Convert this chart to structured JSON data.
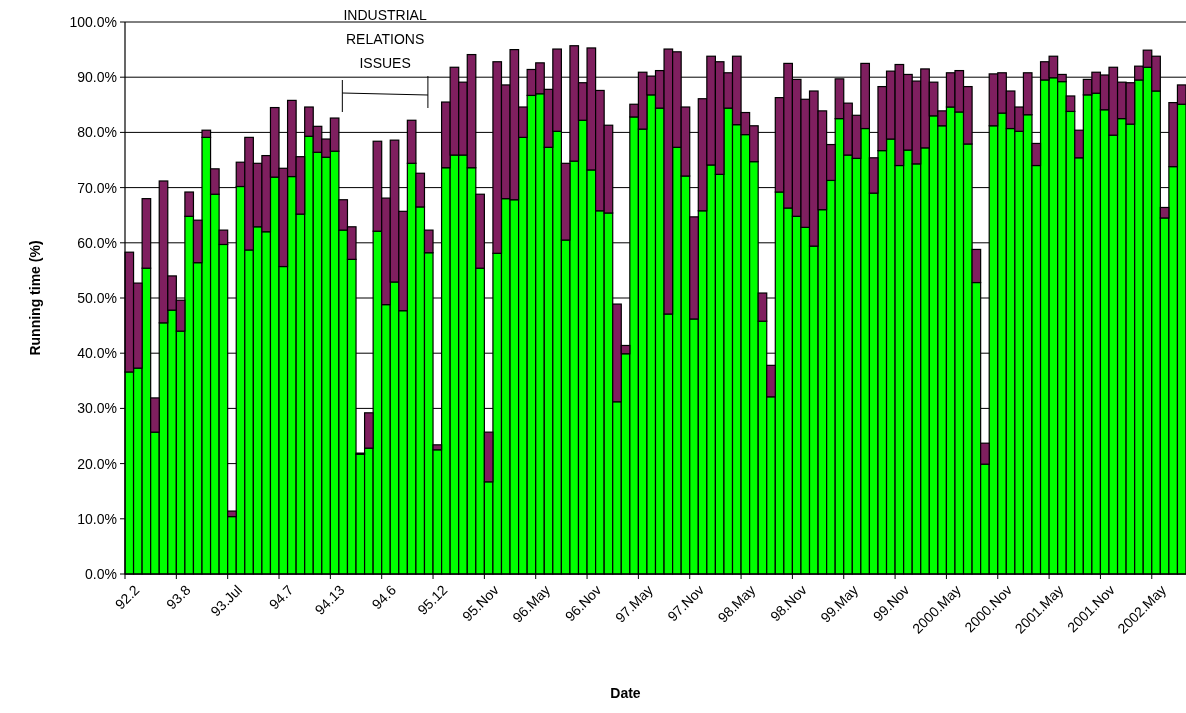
{
  "chart_data": {
    "type": "bar",
    "stacked": true,
    "xlabel": "Date",
    "ylabel": "Running time (%)",
    "annotations": [
      "INDUSTRIAL RELATIONS ISSUES"
    ],
    "categories": [
      "92.2",
      null,
      null,
      null,
      null,
      null,
      "93.8",
      null,
      null,
      null,
      null,
      null,
      "93.Jul",
      null,
      null,
      null,
      null,
      null,
      "94.7",
      null,
      null,
      null,
      null,
      null,
      "94.13",
      null,
      null,
      null,
      null,
      null,
      "94.6",
      null,
      null,
      null,
      null,
      null,
      "95.12",
      null,
      null,
      null,
      null,
      null,
      "95.Nov",
      null,
      null,
      null,
      null,
      null,
      "96.May",
      null,
      null,
      null,
      null,
      null,
      "96.Nov",
      null,
      null,
      null,
      null,
      null,
      "97.May",
      null,
      null,
      null,
      null,
      null,
      "97.Nov",
      null,
      null,
      null,
      null,
      null,
      "98.May",
      null,
      null,
      null,
      null,
      null,
      "98.Nov",
      null,
      null,
      null,
      null,
      null,
      "99.May",
      null,
      null,
      null,
      null,
      null,
      "99.Nov",
      null,
      null,
      null,
      null,
      null,
      "2000.May",
      null,
      null,
      null,
      null,
      null,
      "2000.Nov",
      null,
      null,
      null,
      null,
      null,
      "2001.May",
      null,
      null,
      null,
      null,
      null,
      "2001.Nov",
      null,
      null,
      null,
      null,
      null,
      "2002.May",
      null,
      null,
      null
    ],
    "series": [
      {
        "color": "#00ff00",
        "values": [
          36.6,
          37.3,
          55.4,
          25.7,
          45.5,
          47.8,
          44.0,
          64.8,
          56.4,
          79.1,
          68.8,
          59.7,
          10.4,
          70.2,
          58.7,
          62.9,
          62.0,
          71.9,
          55.7,
          72.0,
          65.2,
          79.3,
          76.4,
          75.5,
          76.6,
          62.3,
          57.0,
          21.7,
          22.8,
          62.1,
          48.8,
          52.9,
          47.7,
          74.4,
          66.5,
          58.2,
          22.5,
          73.6,
          75.9,
          75.9,
          73.6,
          55.4,
          16.7,
          58.1,
          68.0,
          67.8,
          79.1,
          86.7,
          87.0,
          77.3,
          80.2,
          60.5,
          74.8,
          82.2,
          73.2,
          65.8,
          65.4,
          31.2,
          39.9,
          82.8,
          80.6,
          86.8,
          84.4,
          47.1,
          77.3,
          72.1,
          46.2,
          65.8,
          74.1,
          72.4,
          84.4,
          81.4,
          79.6,
          74.7,
          45.8,
          32.1,
          69.2,
          66.3,
          64.8,
          62.8,
          59.4,
          66.0,
          71.3,
          82.5,
          75.9,
          75.3,
          80.7,
          69.0,
          76.7,
          78.8,
          74.0,
          76.8,
          74.3,
          77.2,
          83.0,
          81.2,
          84.6,
          83.7,
          77.9,
          52.8,
          19.9,
          81.2,
          83.5,
          80.7,
          80.2,
          83.2,
          74.0,
          89.5,
          89.9,
          89.2,
          83.8,
          75.4,
          86.8,
          87.1,
          84.1,
          79.5,
          82.5,
          81.5,
          89.5,
          91.8,
          87.5,
          64.5,
          73.8,
          85.1
        ]
      },
      {
        "color": "#7f1f5f",
        "values": [
          21.7,
          15.4,
          12.6,
          6.2,
          25.7,
          6.2,
          5.6,
          4.4,
          7.7,
          1.3,
          4.6,
          2.6,
          1.0,
          4.4,
          20.4,
          11.5,
          13.8,
          12.6,
          17.8,
          13.8,
          10.4,
          5.3,
          4.7,
          3.3,
          6.0,
          5.5,
          5.9,
          0.2,
          6.4,
          16.3,
          19.3,
          25.7,
          18.0,
          7.8,
          6.1,
          4.1,
          0.9,
          11.9,
          15.9,
          13.2,
          20.5,
          13.4,
          9.0,
          34.7,
          20.6,
          27.2,
          5.5,
          4.7,
          5.6,
          10.5,
          14.9,
          13.9,
          20.9,
          6.8,
          22.1,
          21.8,
          15.9,
          17.7,
          1.5,
          2.3,
          10.3,
          3.4,
          6.8,
          48.0,
          17.3,
          12.5,
          18.5,
          20.3,
          19.7,
          20.4,
          6.4,
          12.4,
          4.0,
          6.5,
          5.1,
          5.7,
          17.1,
          26.2,
          24.8,
          23.2,
          28.1,
          17.9,
          6.5,
          7.2,
          9.4,
          7.8,
          11.8,
          6.4,
          11.6,
          12.3,
          18.3,
          13.7,
          15.0,
          14.3,
          6.1,
          2.7,
          6.2,
          7.5,
          10.4,
          6.0,
          3.8,
          9.4,
          7.3,
          6.8,
          4.4,
          7.6,
          4.0,
          3.3,
          3.9,
          1.3,
          2.8,
          5.0,
          2.8,
          3.8,
          6.3,
          12.3,
          6.6,
          7.5,
          2.5,
          3.1,
          6.3,
          1.9,
          11.6,
          3.5
        ]
      }
    ],
    "ylim": [
      0,
      100
    ],
    "yticks": [
      {
        "value": 0,
        "label": "0.0%"
      },
      {
        "value": 10,
        "label": "10.0%"
      },
      {
        "value": 20,
        "label": "20.0%"
      },
      {
        "value": 30,
        "label": "30.0%"
      },
      {
        "value": 40,
        "label": "40.0%"
      },
      {
        "value": 50,
        "label": "50.0%"
      },
      {
        "value": 60,
        "label": "60.0%"
      },
      {
        "value": 70,
        "label": "70.0%"
      },
      {
        "value": 80,
        "label": "80.0%"
      },
      {
        "value": 90,
        "label": "90.0%"
      },
      {
        "value": 100,
        "label": "100.0%"
      }
    ],
    "grid": "y"
  }
}
